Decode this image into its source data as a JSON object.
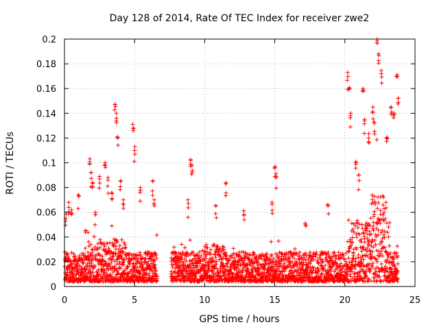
{
  "chart_data": {
    "type": "scatter",
    "title": "Day 128 of 2014, Rate Of TEC Index for receiver zwe2",
    "xlabel": "GPS time / hours",
    "ylabel": "ROTI / TECUs",
    "xlim": [
      0,
      25
    ],
    "ylim": [
      0,
      0.2
    ],
    "xticks": [
      "0",
      "5",
      "10",
      "15",
      "20",
      "25"
    ],
    "yticks": [
      "0",
      "0.02",
      "0.04",
      "0.06",
      "0.08",
      "0.1",
      "0.12",
      "0.14",
      "0.16",
      "0.18",
      "0.2"
    ],
    "grid": true,
    "marker": "+",
    "color": "#ff0000",
    "data_gap_hours": [
      6.6,
      7.6
    ],
    "points": [
      [
        0.1,
        0.055
      ],
      [
        0.3,
        0.068
      ],
      [
        0.5,
        0.062
      ],
      [
        1.0,
        0.073
      ],
      [
        1.5,
        0.045
      ],
      [
        1.8,
        0.101
      ],
      [
        1.9,
        0.092
      ],
      [
        2.0,
        0.084
      ],
      [
        2.2,
        0.06
      ],
      [
        2.5,
        0.087
      ],
      [
        2.9,
        0.1
      ],
      [
        3.1,
        0.088
      ],
      [
        3.4,
        0.075
      ],
      [
        3.6,
        0.147
      ],
      [
        3.7,
        0.14
      ],
      [
        3.8,
        0.12
      ],
      [
        4.0,
        0.085
      ],
      [
        4.2,
        0.07
      ],
      [
        4.9,
        0.128
      ],
      [
        5.0,
        0.11
      ],
      [
        5.4,
        0.08
      ],
      [
        6.3,
        0.085
      ],
      [
        6.4,
        0.07
      ],
      [
        8.8,
        0.07
      ],
      [
        9.0,
        0.102
      ],
      [
        9.1,
        0.098
      ],
      [
        10.8,
        0.065
      ],
      [
        11.5,
        0.083
      ],
      [
        12.8,
        0.058
      ],
      [
        14.8,
        0.068
      ],
      [
        15.0,
        0.096
      ],
      [
        15.1,
        0.088
      ],
      [
        17.2,
        0.05
      ],
      [
        18.8,
        0.065
      ],
      [
        20.2,
        0.173
      ],
      [
        20.3,
        0.16
      ],
      [
        20.4,
        0.138
      ],
      [
        20.8,
        0.1
      ],
      [
        21.0,
        0.09
      ],
      [
        21.3,
        0.16
      ],
      [
        21.4,
        0.135
      ],
      [
        21.7,
        0.12
      ],
      [
        22.0,
        0.145
      ],
      [
        22.1,
        0.132
      ],
      [
        22.3,
        0.2
      ],
      [
        22.4,
        0.188
      ],
      [
        22.6,
        0.172
      ],
      [
        23.0,
        0.12
      ],
      [
        23.3,
        0.145
      ],
      [
        23.5,
        0.14
      ],
      [
        23.7,
        0.17
      ],
      [
        23.8,
        0.152
      ]
    ]
  }
}
